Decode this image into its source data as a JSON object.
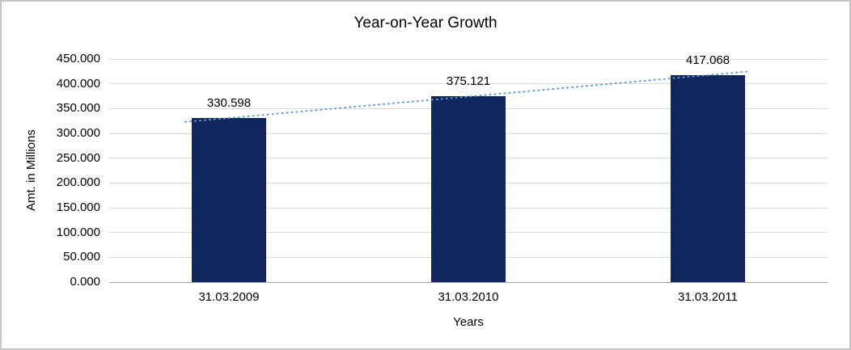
{
  "chart_data": {
    "type": "bar",
    "title": "Year-on-Year Growth",
    "xlabel": "Years",
    "ylabel": "Amt. in Millions",
    "categories": [
      "31.03.2009",
      "31.03.2010",
      "31.03.2011"
    ],
    "values": [
      330.598,
      375.121,
      417.068
    ],
    "data_labels": [
      "330.598",
      "375.121",
      "417.068"
    ],
    "ylim": [
      0,
      450
    ],
    "ytick_step": 50,
    "ytick_labels": [
      "0.000",
      "50.000",
      "100.000",
      "150.000",
      "200.000",
      "250.000",
      "300.000",
      "350.000",
      "400.000",
      "450.000"
    ],
    "grid": true,
    "legend": "none",
    "bar_color": "#12265E",
    "gridline_color": "#d9d9d9",
    "axis_line_color": "#a6a6a6",
    "trendline": {
      "type": "linear",
      "color": "#5B9BD5",
      "style": "dotted"
    }
  }
}
